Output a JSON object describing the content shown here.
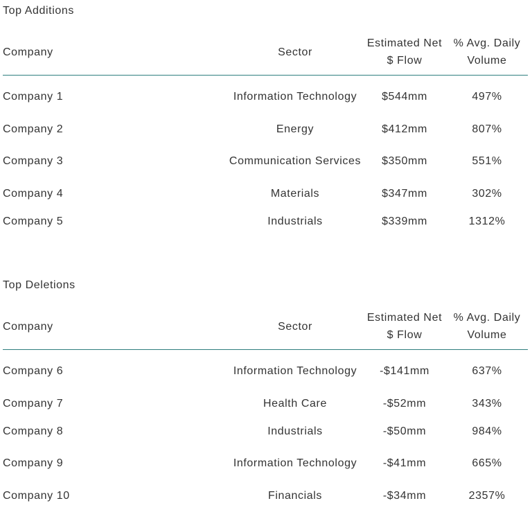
{
  "additions": {
    "title": "Top Additions",
    "headers": {
      "company": "Company",
      "sector": "Sector",
      "flow": "Estimated Net $ Flow",
      "volume": "% Avg. Daily Volume"
    },
    "rows": [
      {
        "company": "Company 1",
        "sector": "Information Technology",
        "flow": "$544mm",
        "volume": "497%"
      },
      {
        "company": "Company 2",
        "sector": "Energy",
        "flow": "$412mm",
        "volume": "807%"
      },
      {
        "company": "Company 3",
        "sector": "Communication Services",
        "flow": "$350mm",
        "volume": "551%"
      },
      {
        "company": "Company 4",
        "sector": "Materials",
        "flow": "$347mm",
        "volume": "302%"
      },
      {
        "company": "Company 5",
        "sector": "Industrials",
        "flow": "$339mm",
        "volume": "1312%"
      }
    ]
  },
  "deletions": {
    "title": "Top Deletions",
    "headers": {
      "company": "Company",
      "sector": "Sector",
      "flow": "Estimated Net $ Flow",
      "volume": "% Avg. Daily Volume"
    },
    "rows": [
      {
        "company": "Company 6",
        "sector": "Information Technology",
        "flow": "-$141mm",
        "volume": "637%"
      },
      {
        "company": "Company 7",
        "sector": "Health Care",
        "flow": "-$52mm",
        "volume": "343%"
      },
      {
        "company": "Company 8",
        "sector": "Industrials",
        "flow": "-$50mm",
        "volume": "984%"
      },
      {
        "company": "Company 9",
        "sector": "Information Technology",
        "flow": "-$41mm",
        "volume": "665%"
      },
      {
        "company": "Company 10",
        "sector": "Financials",
        "flow": "-$34mm",
        "volume": "2357%"
      }
    ]
  }
}
